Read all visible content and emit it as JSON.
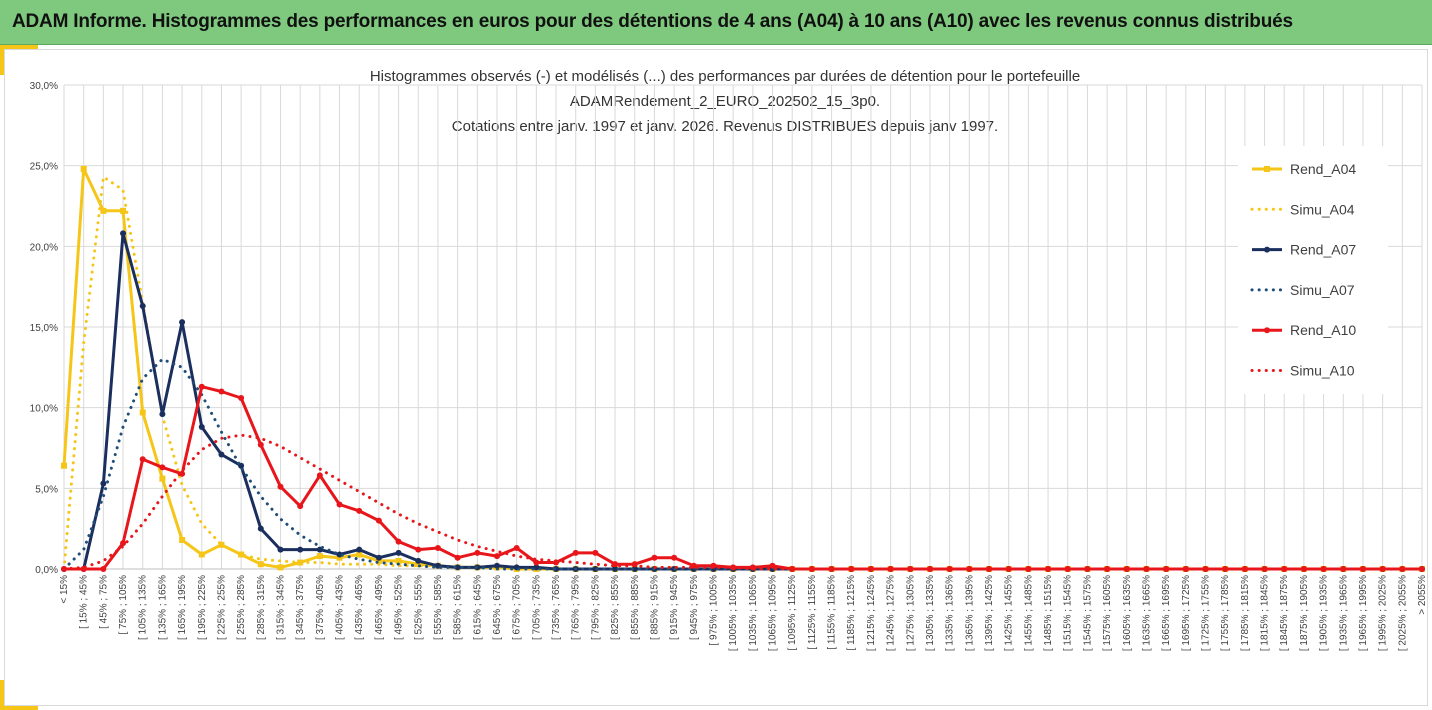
{
  "banner": {
    "title": "ADAM Informe. Histogrammes des performances en euros pour des détentions de 4 ans (A04) à 10 ans (A10) avec les revenus connus distribués"
  },
  "colors": {
    "banner_bg": "#7ec97e",
    "accent": "#f5c518"
  },
  "chart_data": {
    "type": "line",
    "title_lines": [
      "Histogrammes observés (-) et modélisés (...) des performances par durées de détention pour le portefeuille",
      "ADAMRendement_2_EURO_202502_15_3p0.",
      "Cotations entre janv. 1997 et janv. 2026. Revenus DISTRIBUES depuis janv 1997."
    ],
    "ylim": [
      0,
      0.3
    ],
    "yticks": [
      "0,0%",
      "5,0%",
      "10,0%",
      "15,0%",
      "20,0%",
      "25,0%",
      "30,0%"
    ],
    "grid": true,
    "legend_position": "right",
    "categories": [
      "< 15%",
      "[ 15% ; 45%",
      "[ 45% ; 75%",
      "[ 75% ; 105%",
      "[ 105% ; 135%",
      "[ 135% ; 165%",
      "[ 165% ; 195%",
      "[ 195% ; 225%",
      "[ 225% ; 255%",
      "[ 255% ; 285%",
      "[ 285% ; 315%",
      "[ 315% ; 345%",
      "[ 345% ; 375%",
      "[ 375% ; 405%",
      "[ 405% ; 435%",
      "[ 435% ; 465%",
      "[ 465% ; 495%",
      "[ 495% ; 525%",
      "[ 525% ; 555%",
      "[ 555% ; 585%",
      "[ 585% ; 615%",
      "[ 615% ; 645%",
      "[ 645% ; 675%",
      "[ 675% ; 705%",
      "[ 705% ; 735%",
      "[ 735% ; 765%",
      "[ 765% ; 795%",
      "[ 795% ; 825%",
      "[ 825% ; 855%",
      "[ 855% ; 885%",
      "[ 885% ; 915%",
      "[ 915% ; 945%",
      "[ 945% ; 975%",
      "[ 975% ; 1005%",
      "[ 1005% ; 1035%",
      "[ 1035% ; 1065%",
      "[ 1065% ; 1095%",
      "[ 1095% ; 1125%",
      "[ 1125% ; 1155%",
      "[ 1155% ; 1185%",
      "[ 1185% ; 1215%",
      "[ 1215% ; 1245%",
      "[ 1245% ; 1275%",
      "[ 1275% ; 1305%",
      "[ 1305% ; 1335%",
      "[ 1335% ; 1365%",
      "[ 1365% ; 1395%",
      "[ 1395% ; 1425%",
      "[ 1425% ; 1455%",
      "[ 1455% ; 1485%",
      "[ 1485% ; 1515%",
      "[ 1515% ; 1545%",
      "[ 1545% ; 1575%",
      "[ 1575% ; 1605%",
      "[ 1605% ; 1635%",
      "[ 1635% ; 1665%",
      "[ 1665% ; 1695%",
      "[ 1695% ; 1725%",
      "[ 1725% ; 1755%",
      "[ 1755% ; 1785%",
      "[ 1785% ; 1815%",
      "[ 1815% ; 1845%",
      "[ 1845% ; 1875%",
      "[ 1875% ; 1905%",
      "[ 1905% ; 1935%",
      "[ 1935% ; 1965%",
      "[ 1965% ; 1995%",
      "[ 1995% ; 2025%",
      "[ 2025% ; 2055%",
      "> 2055%"
    ],
    "series": [
      {
        "name": "Rend_A04",
        "color": "#f5c518",
        "style": "solid",
        "marker": "square",
        "values": [
          0.064,
          0.248,
          0.222,
          0.222,
          0.097,
          0.056,
          0.018,
          0.009,
          0.015,
          0.009,
          0.003,
          0.001,
          0.004,
          0.008,
          0.007,
          0.009,
          0.005,
          0.005,
          0.003,
          0.002,
          0.001,
          0.001,
          0.001,
          0,
          0,
          0,
          0,
          0,
          0,
          0,
          0,
          0,
          0,
          0,
          0,
          0,
          0,
          0,
          0,
          0,
          0,
          0,
          0,
          0,
          0,
          0,
          0,
          0,
          0,
          0,
          0,
          0,
          0,
          0,
          0,
          0,
          0,
          0,
          0,
          0,
          0,
          0,
          0,
          0,
          0,
          0,
          0,
          0,
          0,
          0
        ]
      },
      {
        "name": "Simu_A04",
        "color": "#f5c518",
        "style": "dotted",
        "marker": "none",
        "values": [
          0.0,
          0.14,
          0.243,
          0.235,
          0.165,
          0.095,
          0.052,
          0.028,
          0.015,
          0.009,
          0.006,
          0.005,
          0.004,
          0.004,
          0.003,
          0.003,
          0.003,
          0.002,
          0.002,
          0.002,
          0.001,
          0.001,
          0.001,
          0.001,
          0,
          0,
          0,
          0,
          0,
          0,
          0,
          0,
          0,
          0,
          0,
          0,
          0,
          0,
          0,
          0,
          0,
          0,
          0,
          0,
          0,
          0,
          0,
          0,
          0,
          0,
          0,
          0,
          0,
          0,
          0,
          0,
          0,
          0,
          0,
          0,
          0,
          0,
          0,
          0,
          0,
          0,
          0,
          0,
          0,
          0
        ]
      },
      {
        "name": "Rend_A07",
        "color": "#1a2f5e",
        "style": "solid",
        "marker": "circle",
        "values": [
          0,
          0,
          0.053,
          0.208,
          0.163,
          0.096,
          0.153,
          0.088,
          0.071,
          0.064,
          0.025,
          0.012,
          0.012,
          0.012,
          0.009,
          0.012,
          0.007,
          0.01,
          0.005,
          0.002,
          0.001,
          0.001,
          0.002,
          0.001,
          0.001,
          0,
          0,
          0,
          0,
          0,
          0,
          0,
          0,
          0,
          0,
          0,
          0,
          0,
          0,
          0,
          0,
          0,
          0,
          0,
          0,
          0,
          0,
          0,
          0,
          0,
          0,
          0,
          0,
          0,
          0,
          0,
          0,
          0,
          0,
          0,
          0,
          0,
          0,
          0,
          0,
          0,
          0,
          0,
          0,
          0
        ]
      },
      {
        "name": "Simu_A07",
        "color": "#1f4e79",
        "style": "dotted",
        "marker": "none",
        "values": [
          0,
          0.012,
          0.045,
          0.088,
          0.118,
          0.13,
          0.125,
          0.108,
          0.085,
          0.063,
          0.045,
          0.031,
          0.021,
          0.014,
          0.009,
          0.006,
          0.004,
          0.003,
          0.002,
          0.001,
          0.001,
          0.001,
          0,
          0,
          0,
          0,
          0,
          0,
          0,
          0,
          0,
          0,
          0,
          0,
          0,
          0,
          0,
          0,
          0,
          0,
          0,
          0,
          0,
          0,
          0,
          0,
          0,
          0,
          0,
          0,
          0,
          0,
          0,
          0,
          0,
          0,
          0,
          0,
          0,
          0,
          0,
          0,
          0,
          0,
          0,
          0,
          0,
          0,
          0,
          0
        ]
      },
      {
        "name": "Rend_A10",
        "color": "#e8161b",
        "style": "solid",
        "marker": "circle",
        "values": [
          0,
          0,
          0,
          0.016,
          0.068,
          0.063,
          0.059,
          0.113,
          0.11,
          0.106,
          0.077,
          0.051,
          0.039,
          0.058,
          0.04,
          0.036,
          0.03,
          0.017,
          0.012,
          0.013,
          0.007,
          0.01,
          0.008,
          0.013,
          0.004,
          0.004,
          0.01,
          0.01,
          0.003,
          0.003,
          0.007,
          0.007,
          0.002,
          0.002,
          0.001,
          0.001,
          0.002,
          0,
          0,
          0,
          0,
          0,
          0,
          0,
          0,
          0,
          0,
          0,
          0,
          0,
          0,
          0,
          0,
          0,
          0,
          0,
          0,
          0,
          0,
          0,
          0,
          0,
          0,
          0,
          0,
          0,
          0,
          0,
          0,
          0
        ]
      },
      {
        "name": "Simu_A10",
        "color": "#e8161b",
        "style": "dotted",
        "marker": "none",
        "values": [
          0,
          0.001,
          0.005,
          0.014,
          0.028,
          0.045,
          0.061,
          0.074,
          0.081,
          0.083,
          0.081,
          0.076,
          0.069,
          0.062,
          0.055,
          0.048,
          0.041,
          0.034,
          0.028,
          0.023,
          0.018,
          0.014,
          0.011,
          0.008,
          0.006,
          0.005,
          0.004,
          0.003,
          0.002,
          0.002,
          0.001,
          0.001,
          0.001,
          0.001,
          0.001,
          0,
          0,
          0,
          0,
          0,
          0,
          0,
          0,
          0,
          0,
          0,
          0,
          0,
          0,
          0,
          0,
          0,
          0,
          0,
          0,
          0,
          0,
          0,
          0,
          0,
          0,
          0,
          0,
          0,
          0,
          0,
          0,
          0,
          0,
          0
        ]
      }
    ]
  }
}
